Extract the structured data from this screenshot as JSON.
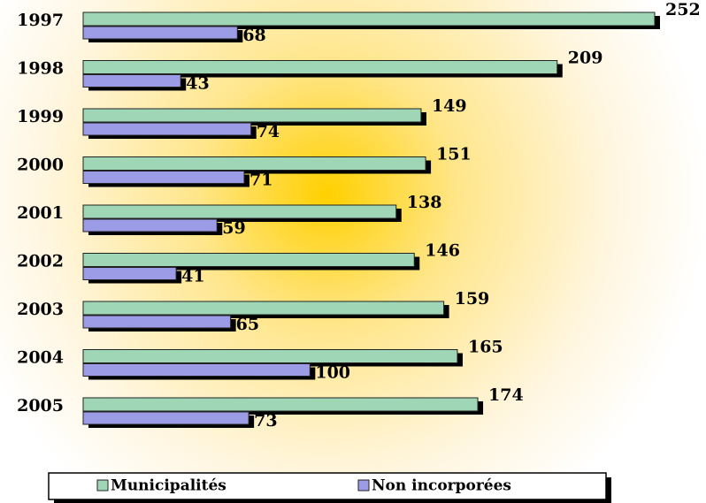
{
  "chart_data": {
    "type": "bar",
    "orientation": "horizontal",
    "categories": [
      "1997",
      "1998",
      "1999",
      "2000",
      "2001",
      "2002",
      "2003",
      "2004",
      "2005"
    ],
    "series": [
      {
        "name": "Municipalités",
        "color": "#9fd6b6",
        "values": [
          252,
          209,
          149,
          151,
          138,
          146,
          159,
          165,
          174
        ]
      },
      {
        "name": "Non incorporées",
        "color": "#9c9ce6",
        "values": [
          68,
          43,
          74,
          71,
          59,
          41,
          65,
          100,
          73
        ]
      }
    ],
    "legend": "bottom"
  }
}
